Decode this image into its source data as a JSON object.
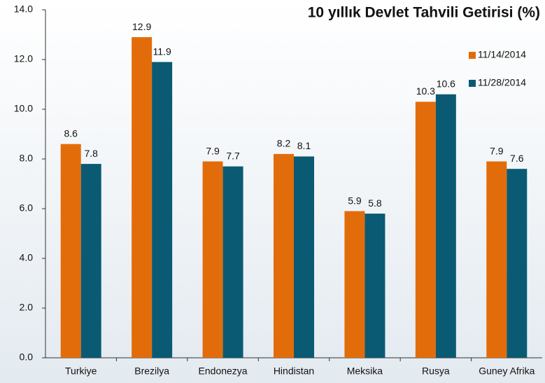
{
  "chart_data": {
    "type": "bar",
    "title": "10 yıllık Devlet Tahvili Getirisi (%)",
    "categories": [
      "Turkiye",
      "Brezilya",
      "Endonezya",
      "Hindistan",
      "Meksika",
      "Rusya",
      "Guney Afrika"
    ],
    "series": [
      {
        "name": "11/14/2014",
        "color": "#e36c0a",
        "values": [
          8.6,
          12.9,
          7.9,
          8.2,
          5.9,
          10.3,
          7.9
        ]
      },
      {
        "name": "11/28/2014",
        "color": "#0b5a73",
        "values": [
          7.8,
          11.9,
          7.7,
          8.1,
          5.8,
          10.6,
          7.6
        ]
      }
    ],
    "ylim": [
      0,
      14
    ],
    "yticks": [
      {
        "value": 0,
        "label": "0.0"
      },
      {
        "value": 2,
        "label": "2.0"
      },
      {
        "value": 4,
        "label": "4.0"
      },
      {
        "value": 6,
        "label": "6.0"
      },
      {
        "value": 8,
        "label": "8.0"
      },
      {
        "value": 10,
        "label": "10.0"
      },
      {
        "value": 12,
        "label": "12.0"
      },
      {
        "value": 14,
        "label": "14.0"
      }
    ],
    "legend": "upper right",
    "grid": false
  }
}
